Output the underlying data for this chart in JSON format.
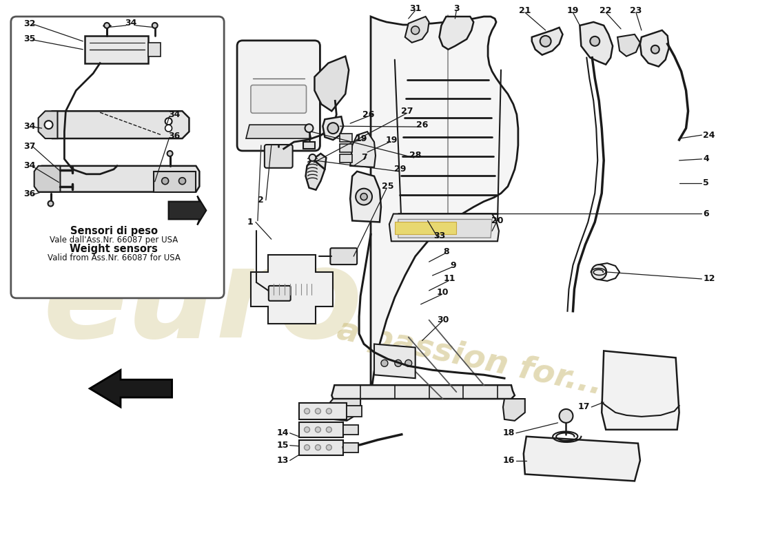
{
  "background_color": "#ffffff",
  "line_color": "#1a1a1a",
  "fill_light": "#f0f0f0",
  "fill_mid": "#e0e0e0",
  "fill_dark": "#cccccc",
  "yellow_hl": "#e8d870",
  "watermark_euro_color": "#d4c890",
  "watermark_passion_color": "#c8b870",
  "inset_label_it1": "Sensori di peso",
  "inset_label_it2": "Vale dall'Ass.Nr. 66087 per USA",
  "inset_label_en1": "Weight sensors",
  "inset_label_en2": "Valid from Ass.Nr. 66087 for USA"
}
